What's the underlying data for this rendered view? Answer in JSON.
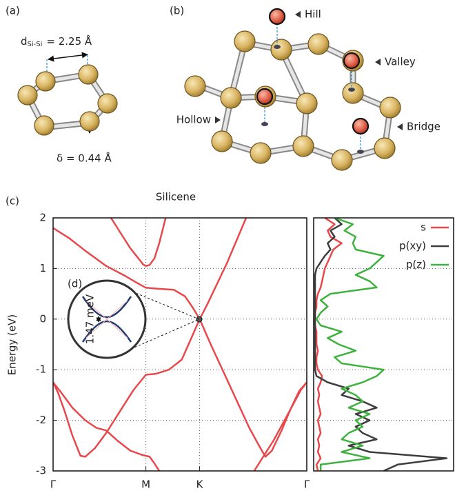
{
  "panels": {
    "a": {
      "label": "(a)",
      "distance": {
        "symbol": "d",
        "subscript": "Si-Si",
        "text": "= 2.25 Å"
      },
      "buckling": "δ = 0.44 Å"
    },
    "b": {
      "label": "(b)",
      "sites": [
        "Hill",
        "Valley",
        "Hollow",
        "Bridge"
      ]
    },
    "c": {
      "label": "(c)"
    },
    "d": {
      "label": "(d)",
      "gap": "1.47 meV"
    }
  },
  "chart_data": [
    {
      "type": "line",
      "title": "Silicene",
      "y_label": "Energy (eV)",
      "grid": true,
      "xlim": [
        0,
        1.577
      ],
      "xticks": [
        {
          "value": 0,
          "label": "Γ"
        },
        {
          "value": 0.577,
          "label": "M"
        },
        {
          "value": 0.911,
          "label": "K"
        },
        {
          "value": 1.577,
          "label": "Γ"
        }
      ],
      "ylim": [
        -3,
        2
      ],
      "yticks": [
        -3,
        -2,
        -1,
        0,
        1,
        2
      ],
      "series": [
        {
          "color": "#e8474b",
          "x": [
            0,
            0.1,
            0.2,
            0.33,
            0.45,
            0.53,
            0.577,
            0.65,
            0.75,
            0.82,
            0.87,
            0.911,
            0.96,
            1.02,
            1.08,
            1.14,
            1.2
          ],
          "values": [
            1.8,
            1.6,
            1.35,
            1.05,
            0.85,
            0.7,
            0.62,
            0.6,
            0.58,
            0.45,
            0.22,
            0,
            0.3,
            0.7,
            1.1,
            1.55,
            2.0
          ]
        },
        {
          "color": "#e8474b",
          "x": [
            0.911,
            0.87,
            0.8,
            0.72,
            0.64,
            0.577,
            0.5,
            0.42,
            0.33,
            0.26,
            0.2,
            0.17,
            0.12,
            0.07,
            0.03,
            0
          ],
          "values": [
            0,
            -0.3,
            -0.8,
            -1.0,
            -1.08,
            -1.1,
            -1.4,
            -1.8,
            -2.25,
            -2.55,
            -2.72,
            -2.7,
            -2.3,
            -1.8,
            -1.45,
            -1.25
          ]
        },
        {
          "color": "#e8474b",
          "x": [
            0,
            0.05,
            0.12,
            0.2,
            0.27,
            0.33,
            0.4,
            0.48,
            0.55,
            0.6,
            0.63,
            0.66
          ],
          "values": [
            -1.25,
            -1.45,
            -1.75,
            -2.0,
            -2.15,
            -2.2,
            -2.4,
            -2.6,
            -2.68,
            -2.72,
            -2.85,
            -3.0
          ]
        },
        {
          "color": "#e8474b",
          "x": [
            0.36,
            0.42,
            0.48,
            0.53,
            0.56,
            0.577,
            0.6,
            0.63,
            0.66,
            0.7
          ],
          "values": [
            2.0,
            1.7,
            1.4,
            1.2,
            1.08,
            1.05,
            1.07,
            1.2,
            1.5,
            2.0
          ]
        },
        {
          "color": "#e8474b",
          "x": [
            0.911,
            0.98,
            1.06,
            1.14,
            1.22,
            1.28,
            1.32,
            1.36,
            1.42,
            1.48,
            1.53,
            1.577
          ],
          "values": [
            0,
            -0.5,
            -1.05,
            -1.6,
            -2.15,
            -2.5,
            -2.72,
            -2.6,
            -2.2,
            -1.75,
            -1.42,
            -1.25
          ]
        },
        {
          "color": "#e8474b",
          "x": [
            1.577,
            1.54,
            1.49,
            1.43,
            1.37,
            1.32,
            1.28,
            1.25
          ],
          "values": [
            -1.25,
            -1.4,
            -1.7,
            -2.05,
            -2.4,
            -2.65,
            -2.85,
            -3.0
          ]
        }
      ]
    },
    {
      "type": "line",
      "orientation": "horizontal",
      "legend": "upper right",
      "xlim": [
        0,
        1
      ],
      "ylim": [
        -3,
        2
      ],
      "y": [
        -3,
        -2.875,
        -2.75,
        -2.625,
        -2.5,
        -2.375,
        -2.25,
        -2.125,
        -2,
        -1.875,
        -1.75,
        -1.625,
        -1.5,
        -1.375,
        -1.25,
        -1.125,
        -1,
        -0.875,
        -0.75,
        -0.625,
        -0.5,
        -0.375,
        -0.25,
        -0.125,
        0,
        0.125,
        0.25,
        0.375,
        0.5,
        0.625,
        0.75,
        0.875,
        1,
        1.125,
        1.25,
        1.375,
        1.5,
        1.625,
        1.75,
        1.875,
        2
      ],
      "series": [
        {
          "name": "s",
          "color": "#e8474b",
          "values": [
            0.03,
            0.02,
            0.05,
            0.03,
            0.04,
            0.03,
            0.05,
            0.04,
            0.03,
            0.05,
            0.04,
            0.03,
            0.04,
            0.03,
            0.05,
            0.06,
            0.03,
            0.02,
            0.02,
            0.03,
            0.02,
            0.02,
            0.02,
            0.01,
            0.01,
            0.01,
            0.02,
            0.02,
            0.03,
            0.05,
            0.06,
            0.07,
            0.08,
            0.1,
            0.12,
            0.14,
            0.2,
            0.12,
            0.1,
            0.15,
            0.08
          ]
        },
        {
          "name": "p(xy)",
          "color": "#3d3d3d",
          "values": [
            0.5,
            0.6,
            0.95,
            0.4,
            0.25,
            0.45,
            0.35,
            0.3,
            0.4,
            0.3,
            0.45,
            0.35,
            0.2,
            0.25,
            0.1,
            0.02,
            0.01,
            0.01,
            0.01,
            0.01,
            0.01,
            0.01,
            0.01,
            0.01,
            0.01,
            0.01,
            0.01,
            0.01,
            0.01,
            0.01,
            0.01,
            0.01,
            0.02,
            0.05,
            0.08,
            0.12,
            0.1,
            0.15,
            0.12,
            0.2,
            0.15
          ]
        },
        {
          "name": "p(z)",
          "color": "#3eb13e",
          "values": [
            0.05,
            0.05,
            0.4,
            0.2,
            0.35,
            0.2,
            0.25,
            0.35,
            0.3,
            0.4,
            0.25,
            0.35,
            0.3,
            0.2,
            0.35,
            0.45,
            0.5,
            0.2,
            0.15,
            0.3,
            0.18,
            0.1,
            0.2,
            0.05,
            0.02,
            0.05,
            0.1,
            0.05,
            0.12,
            0.45,
            0.4,
            0.3,
            0.4,
            0.45,
            0.5,
            0.3,
            0.28,
            0.3,
            0.22,
            0.28,
            0.15
          ]
        }
      ]
    }
  ]
}
